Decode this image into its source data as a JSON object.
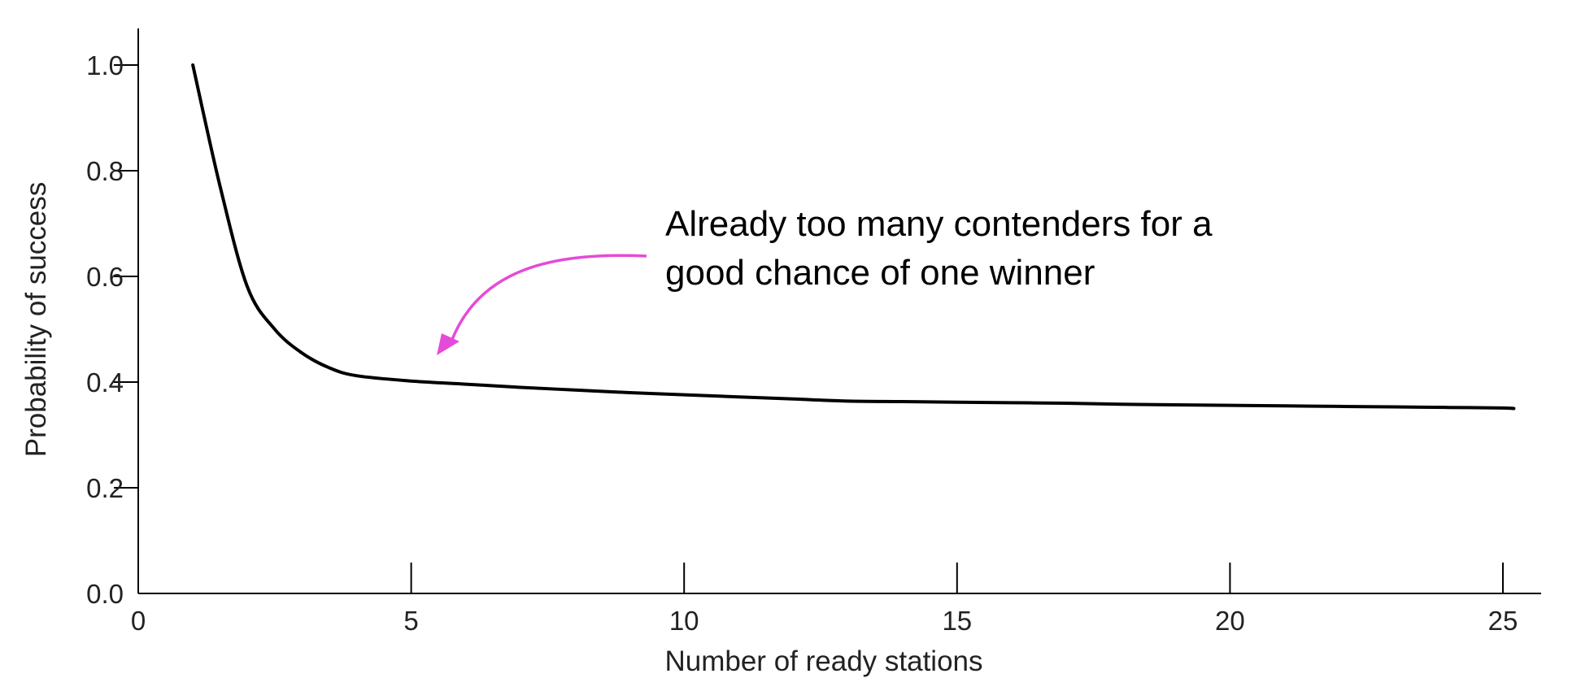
{
  "chart_data": {
    "type": "line",
    "title": "",
    "xlabel": "Number of ready stations",
    "ylabel": "Probability of success",
    "xlim": [
      0,
      26
    ],
    "ylim": [
      0,
      1.05
    ],
    "x_ticks": [
      0,
      5,
      10,
      15,
      20,
      25
    ],
    "x_tick_labels": [
      "0",
      "5",
      "10",
      "15",
      "20",
      "25"
    ],
    "y_ticks": [
      0.0,
      0.2,
      0.4,
      0.6,
      0.8,
      1.0
    ],
    "y_tick_labels": [
      "0.0",
      "0.2",
      "0.4",
      "0.6",
      "0.8",
      "1.0"
    ],
    "grid": false,
    "series": [
      {
        "x": [
          1,
          1.5,
          2,
          2.5,
          3,
          3.5,
          4,
          5,
          6,
          7,
          8,
          9,
          10,
          11,
          12,
          13,
          14,
          15,
          16,
          17,
          18,
          19,
          20,
          21,
          22,
          23,
          24,
          25,
          25.2
        ],
        "y": [
          1.0,
          0.77,
          0.58,
          0.5,
          0.455,
          0.427,
          0.412,
          0.402,
          0.396,
          0.39,
          0.385,
          0.38,
          0.376,
          0.372,
          0.368,
          0.364,
          0.363,
          0.362,
          0.361,
          0.36,
          0.358,
          0.357,
          0.356,
          0.355,
          0.354,
          0.353,
          0.352,
          0.351,
          0.35
        ],
        "color": "#000000"
      }
    ],
    "annotations": [
      {
        "lines": [
          "Already too many contenders for a",
          "good chance of one winner"
        ],
        "arrow_color": "#e64ad8"
      }
    ]
  }
}
